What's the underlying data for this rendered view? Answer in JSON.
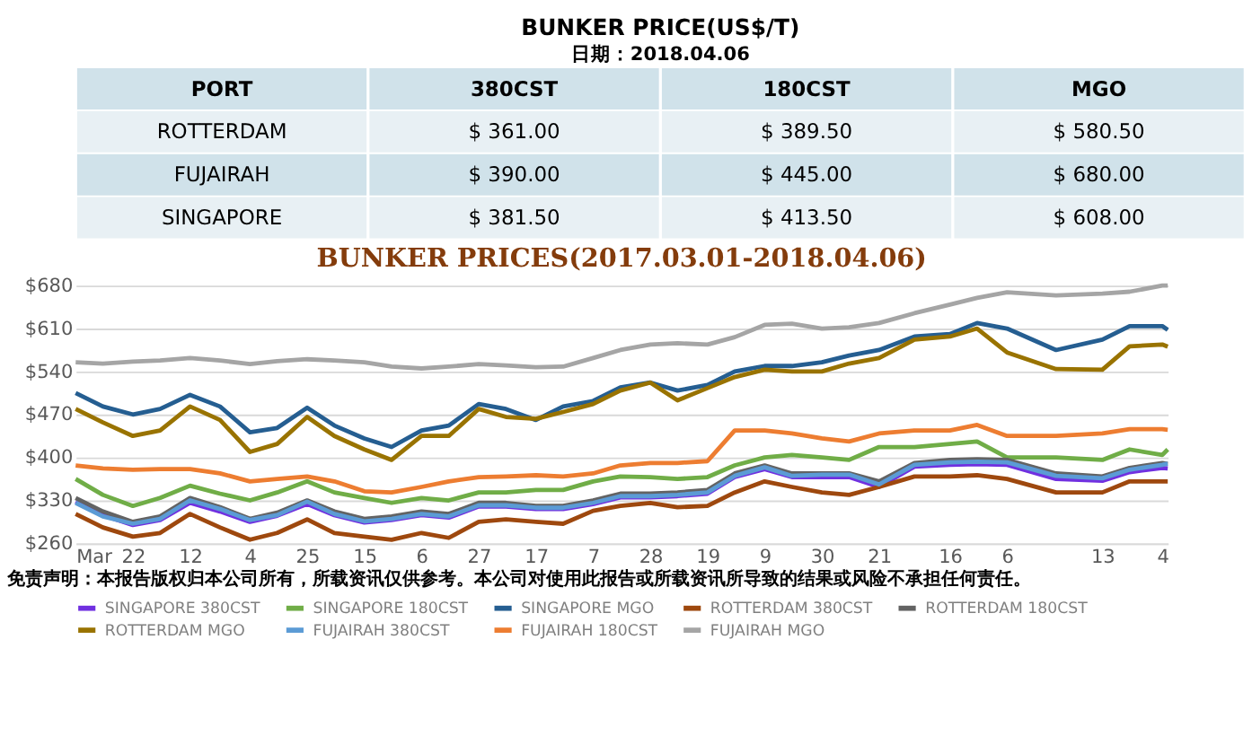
{
  "chart_data": [
    {
      "type": "other",
      "title": "BUNKER  PRICE(US$/T)",
      "subtitle": "日期：2018.04.06",
      "ylabel": "PORT",
      "categories": [
        "380CST",
        "180CST",
        "MGO"
      ],
      "y_categories": [
        "ROTTERDAM",
        "FUJAIRAH",
        "SINGAPORE"
      ],
      "cell_labels": [
        [
          "$ 361.00",
          "$ 389.50",
          "$ 580.50"
        ],
        [
          "$ 390.00",
          "$ 445.00",
          "$ 680.00"
        ],
        [
          "$ 381.50",
          "$ 413.50",
          "$ 608.00"
        ]
      ]
    },
    {
      "type": "line",
      "title": "BUNKER PRICES(2017.03.01-2018.04.06)",
      "x": [
        "2017-03-01",
        "2017-03-11",
        "2017-03-22",
        "2017-04-01",
        "2017-04-12",
        "2017-04-23",
        "2017-05-04",
        "2017-05-14",
        "2017-05-25",
        "2017-06-04",
        "2017-06-15",
        "2017-06-25",
        "2017-07-06",
        "2017-07-16",
        "2017-07-27",
        "2017-08-06",
        "2017-08-17",
        "2017-08-27",
        "2017-09-07",
        "2017-09-17",
        "2017-09-28",
        "2017-10-08",
        "2017-10-19",
        "2017-10-29",
        "2017-11-09",
        "2017-11-19",
        "2017-11-30",
        "2017-12-10",
        "2017-12-21",
        "2018-01-03",
        "2018-01-16",
        "2018-01-26",
        "2018-02-06",
        "2018-02-24",
        "2018-03-13",
        "2018-03-23",
        "2018-04-04",
        "2018-04-06"
      ],
      "xlim": [
        "2017-03-01",
        "2018-04-06"
      ],
      "xticks": [
        {
          "value": "2017-03-01",
          "label": "Mar"
        },
        {
          "value": "2017-03-22",
          "label": "22"
        },
        {
          "value": "2017-04-12",
          "label": "12"
        },
        {
          "value": "2017-05-04",
          "label": "4"
        },
        {
          "value": "2017-05-25",
          "label": "25"
        },
        {
          "value": "2017-06-15",
          "label": "15"
        },
        {
          "value": "2017-07-06",
          "label": "6"
        },
        {
          "value": "2017-07-27",
          "label": "27"
        },
        {
          "value": "2017-08-17",
          "label": "17"
        },
        {
          "value": "2017-09-07",
          "label": "7"
        },
        {
          "value": "2017-09-28",
          "label": "28"
        },
        {
          "value": "2017-10-19",
          "label": "19"
        },
        {
          "value": "2017-11-09",
          "label": "9"
        },
        {
          "value": "2017-11-30",
          "label": "30"
        },
        {
          "value": "2017-12-21",
          "label": "21"
        },
        {
          "value": "2018-01-16",
          "label": "16"
        },
        {
          "value": "2018-02-06",
          "label": "6"
        },
        {
          "value": "2018-03-13",
          "label": "13"
        },
        {
          "value": "2018-04-04",
          "label": "4"
        }
      ],
      "ylim": [
        260,
        680
      ],
      "yticks": [
        {
          "value": 260,
          "label": "$260"
        },
        {
          "value": 330,
          "label": "$330"
        },
        {
          "value": 400,
          "label": "$400"
        },
        {
          "value": 470,
          "label": "$470"
        },
        {
          "value": 540,
          "label": "$540"
        },
        {
          "value": 610,
          "label": "$610"
        },
        {
          "value": 680,
          "label": "$680"
        }
      ],
      "grid": "y",
      "legend": "bottom",
      "annotations": [
        "免责声明：本报告版权归本公司所有，所载资讯仅供参考。本公司对使用此报告或所载资讯所导致的结果或风险不承担任何责任。"
      ],
      "series": [
        {
          "name": "SINGAPORE 380CST",
          "color": "#7030e0",
          "values": [
            328,
            306,
            290,
            298,
            326,
            312,
            295,
            305,
            324,
            306,
            294,
            298,
            306,
            302,
            320,
            320,
            316,
            316,
            324,
            335,
            335,
            337,
            341,
            368,
            381,
            368,
            368,
            368,
            352,
            385,
            388,
            389,
            388,
            365,
            362,
            376,
            383,
            382
          ]
        },
        {
          "name": "SINGAPORE 180CST",
          "color": "#70ad47",
          "values": [
            365,
            339,
            321,
            334,
            354,
            341,
            330,
            343,
            361,
            343,
            334,
            326,
            334,
            330,
            343,
            343,
            347,
            347,
            361,
            369,
            368,
            365,
            368,
            387,
            400,
            404,
            400,
            396,
            417,
            417,
            422,
            426,
            400,
            400,
            396,
            413,
            404,
            413
          ]
        },
        {
          "name": "SINGAPORE MGO",
          "color": "#255e91",
          "values": [
            505,
            483,
            470,
            479,
            502,
            483,
            441,
            448,
            481,
            452,
            431,
            417,
            444,
            452,
            487,
            479,
            461,
            483,
            492,
            514,
            522,
            509,
            518,
            540,
            549,
            549,
            555,
            566,
            575,
            597,
            601,
            619,
            610,
            575,
            592,
            614,
            614,
            608
          ]
        },
        {
          "name": "ROTTERDAM 380CST",
          "color": "#9e480e",
          "values": [
            308,
            286,
            271,
            277,
            308,
            286,
            266,
            277,
            299,
            277,
            271,
            266,
            277,
            269,
            295,
            299,
            295,
            292,
            313,
            321,
            326,
            319,
            321,
            343,
            361,
            352,
            343,
            339,
            352,
            369,
            369,
            371,
            365,
            343,
            343,
            361,
            361,
            361
          ]
        },
        {
          "name": "ROTTERDAM 180CST",
          "color": "#636363",
          "values": [
            334,
            312,
            295,
            304,
            334,
            319,
            300,
            310,
            330,
            312,
            300,
            304,
            312,
            308,
            326,
            326,
            321,
            321,
            330,
            341,
            341,
            343,
            347,
            374,
            387,
            374,
            374,
            374,
            361,
            391,
            396,
            397,
            396,
            374,
            369,
            383,
            391,
            389.5
          ]
        },
        {
          "name": "ROTTERDAM MGO",
          "color": "#997300",
          "values": [
            479,
            457,
            435,
            444,
            483,
            461,
            409,
            422,
            466,
            435,
            413,
            396,
            435,
            435,
            479,
            466,
            463,
            474,
            487,
            509,
            522,
            493,
            513,
            531,
            543,
            540,
            540,
            553,
            562,
            592,
            597,
            610,
            571,
            544,
            543,
            581,
            584,
            580.5
          ]
        },
        {
          "name": "FUJAIRAH 380CST",
          "color": "#5b9bd5",
          "values": [
            326,
            304,
            292,
            300,
            330,
            316,
            298,
            306,
            328,
            308,
            296,
            300,
            308,
            304,
            322,
            322,
            318,
            318,
            326,
            337,
            337,
            339,
            343,
            370,
            384,
            370,
            372,
            372,
            356,
            388,
            392,
            393,
            392,
            370,
            366,
            380,
            388,
            390
          ]
        },
        {
          "name": "FUJAIRAH 180CST",
          "color": "#ed7d31",
          "values": [
            387,
            382,
            380,
            381,
            381,
            374,
            361,
            365,
            369,
            361,
            345,
            343,
            352,
            361,
            368,
            369,
            371,
            369,
            374,
            387,
            391,
            391,
            394,
            444,
            444,
            439,
            431,
            426,
            439,
            444,
            444,
            453,
            435,
            435,
            439,
            446,
            446,
            445
          ]
        },
        {
          "name": "FUJAIRAH MGO",
          "color": "#a5a5a5",
          "values": [
            555,
            553,
            556,
            558,
            562,
            558,
            552,
            557,
            560,
            558,
            555,
            548,
            545,
            548,
            552,
            550,
            547,
            548,
            562,
            575,
            584,
            586,
            584,
            596,
            616,
            618,
            610,
            612,
            619,
            635,
            649,
            660,
            669,
            664,
            667,
            670,
            680,
            680
          ]
        }
      ]
    }
  ]
}
